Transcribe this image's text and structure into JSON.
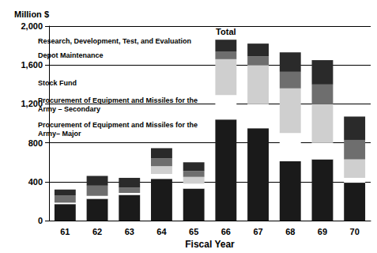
{
  "chart_data": {
    "type": "bar",
    "stacked": true,
    "y_label": "Million $",
    "x_label": "Fiscal Year",
    "categories": [
      "61",
      "62",
      "63",
      "64",
      "65",
      "66",
      "67",
      "68",
      "69",
      "70"
    ],
    "series": [
      {
        "name": "Procurement of Equipment and Missiles for the Army– Major",
        "color": "#1a1a1a",
        "values": [
          170,
          225,
          265,
          430,
          330,
          1040,
          950,
          610,
          630,
          390
        ]
      },
      {
        "name": "Procurement of Equipment and Missiles for the Army – Secondary",
        "color": "#ffffff",
        "values": [
          15,
          30,
          20,
          50,
          50,
          250,
          250,
          290,
          170,
          50
        ]
      },
      {
        "name": "Stock Fund",
        "color": "#cfcfcf",
        "values": [
          0,
          0,
          0,
          80,
          70,
          370,
          400,
          460,
          400,
          190
        ]
      },
      {
        "name": "Depot Maintenance",
        "color": "#6e6e6e",
        "values": [
          75,
          105,
          55,
          80,
          60,
          80,
          90,
          170,
          200,
          200
        ]
      },
      {
        "name": "Research, Development, Test, and Evaluation",
        "color": "#2a2a2a",
        "values": [
          60,
          100,
          100,
          105,
          90,
          120,
          130,
          200,
          250,
          240
        ]
      }
    ],
    "annotations": [
      {
        "text": "Total",
        "category": "66"
      }
    ],
    "ylim": [
      0,
      2000
    ],
    "yticks": [
      0,
      400,
      800,
      1200,
      1600,
      2000
    ],
    "grid": true
  }
}
